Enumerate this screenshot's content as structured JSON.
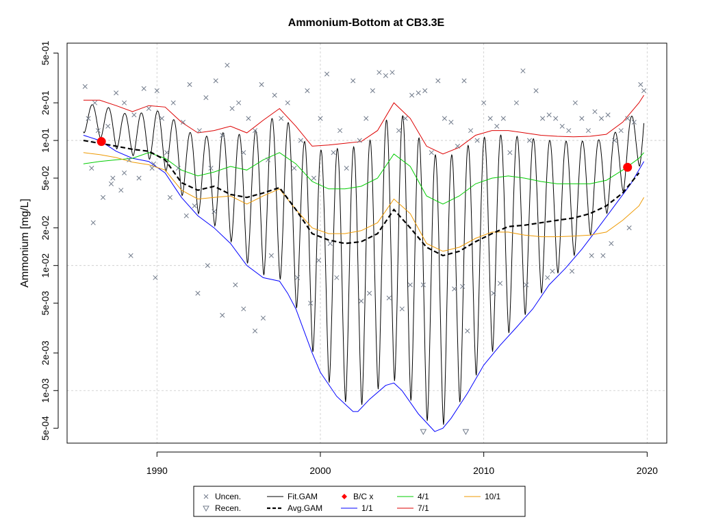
{
  "chart_data": {
    "type": "line",
    "title": "Ammonium-Bottom at CB3.3E",
    "xlabel": "",
    "ylabel": "Ammonium [mg/L]",
    "y_scale": "log",
    "xlim": [
      1984.5,
      2021.2
    ],
    "ylim": [
      0.00038,
      0.6
    ],
    "x_ticks": [
      {
        "value": 1990,
        "label": "1990"
      },
      {
        "value": 2000,
        "label": "2000"
      },
      {
        "value": 2010,
        "label": "2010"
      },
      {
        "value": 2020,
        "label": "2020"
      }
    ],
    "y_ticks": [
      {
        "value": 0.5,
        "label": "5e-01"
      },
      {
        "value": 0.2,
        "label": "2e-01"
      },
      {
        "value": 0.1,
        "label": "1e-01"
      },
      {
        "value": 0.05,
        "label": "5e-02"
      },
      {
        "value": 0.02,
        "label": "2e-02"
      },
      {
        "value": 0.01,
        "label": "1e-02"
      },
      {
        "value": 0.005,
        "label": "5e-03"
      },
      {
        "value": 0.002,
        "label": "2e-03"
      },
      {
        "value": 0.001,
        "label": "1e-03"
      },
      {
        "value": 0.0005,
        "label": "5e-04"
      }
    ],
    "grid": true,
    "legend": {
      "position": "bottom",
      "entries": [
        "Uncen.",
        "Recen.",
        "Fit.GAM",
        "Avg.GAM",
        "B/C x",
        "1/1",
        "4/1",
        "7/1",
        "10/1"
      ]
    },
    "series": [
      {
        "name": "1/1",
        "color": "#0000ff",
        "x": [
          1985.5,
          1986.5,
          1987.5,
          1988.5,
          1989.5,
          1990.5,
          1991.5,
          1992.5,
          1993.5,
          1994.5,
          1995.5,
          1996.5,
          1997.5,
          1998,
          1998.5,
          1999,
          1999.5,
          2000,
          2001,
          2002,
          2002.3,
          2003,
          2004,
          2004.5,
          2005,
          2006,
          2007,
          2007.5,
          2008,
          2009,
          2010,
          2011,
          2012,
          2013,
          2014,
          2015,
          2016,
          2017,
          2018,
          2019,
          2019.8
        ],
        "y": [
          0.11,
          0.1,
          0.082,
          0.072,
          0.068,
          0.055,
          0.035,
          0.025,
          0.02,
          0.015,
          0.01,
          0.008,
          0.0075,
          0.006,
          0.0045,
          0.003,
          0.002,
          0.0014,
          0.0009,
          0.00068,
          0.00068,
          0.00085,
          0.0011,
          0.00115,
          0.001,
          0.00065,
          0.00047,
          0.0005,
          0.0006,
          0.00095,
          0.0016,
          0.0023,
          0.0032,
          0.0045,
          0.007,
          0.0095,
          0.0135,
          0.02,
          0.03,
          0.045,
          0.068
        ]
      },
      {
        "name": "4/1",
        "color": "#00cc00",
        "x": [
          1985.5,
          1986.5,
          1987.5,
          1988.5,
          1989.5,
          1990.5,
          1991.5,
          1992.5,
          1993.5,
          1994.5,
          1995.5,
          1996.5,
          1997.5,
          1998.5,
          1999.5,
          2000.5,
          2001.5,
          2002.5,
          2003.5,
          2004.5,
          2005.5,
          2006.5,
          2007.5,
          2008.5,
          2009.5,
          2010.5,
          2011.5,
          2012.5,
          2013.5,
          2014.5,
          2015.5,
          2016.5,
          2017.5,
          2018.5,
          2019.5,
          2019.8
        ],
        "y": [
          0.065,
          0.068,
          0.07,
          0.072,
          0.08,
          0.072,
          0.058,
          0.052,
          0.056,
          0.062,
          0.058,
          0.07,
          0.08,
          0.065,
          0.047,
          0.041,
          0.041,
          0.043,
          0.05,
          0.078,
          0.062,
          0.036,
          0.031,
          0.036,
          0.045,
          0.05,
          0.052,
          0.05,
          0.047,
          0.045,
          0.045,
          0.045,
          0.048,
          0.058,
          0.072,
          0.08
        ]
      },
      {
        "name": "7/1",
        "color": "#dd0000",
        "x": [
          1985.5,
          1986.5,
          1987.5,
          1988.5,
          1989.5,
          1990.5,
          1991.5,
          1992.5,
          1993.5,
          1994.5,
          1995.5,
          1996.5,
          1997.5,
          1998.5,
          1999.5,
          2000.5,
          2001.5,
          2002.5,
          2003.5,
          2004.5,
          2005.5,
          2006.5,
          2007.5,
          2008.5,
          2009.5,
          2010.5,
          2011.5,
          2012.5,
          2013.5,
          2014.5,
          2015.5,
          2016.5,
          2017.5,
          2018.5,
          2019.5,
          2019.8
        ],
        "y": [
          0.21,
          0.21,
          0.19,
          0.17,
          0.19,
          0.185,
          0.14,
          0.115,
          0.12,
          0.13,
          0.115,
          0.145,
          0.18,
          0.13,
          0.09,
          0.092,
          0.095,
          0.098,
          0.12,
          0.2,
          0.15,
          0.09,
          0.078,
          0.088,
          0.11,
          0.12,
          0.12,
          0.115,
          0.11,
          0.108,
          0.107,
          0.108,
          0.112,
          0.14,
          0.2,
          0.23
        ]
      },
      {
        "name": "10/1",
        "color": "#ee9900",
        "x": [
          1985.5,
          1986.5,
          1987.5,
          1988.5,
          1989.5,
          1990.5,
          1991.5,
          1992.5,
          1993.5,
          1994.5,
          1995.5,
          1996.5,
          1997.5,
          1998.5,
          1999.5,
          2000.5,
          2001.5,
          2002.5,
          2003.5,
          2004.5,
          2005.5,
          2006.5,
          2007.5,
          2008.5,
          2009.5,
          2010.5,
          2011.5,
          2012.5,
          2013.5,
          2014.5,
          2015.5,
          2016.5,
          2017.5,
          2018.5,
          2019.5,
          2019.8
        ],
        "y": [
          0.08,
          0.077,
          0.073,
          0.067,
          0.064,
          0.058,
          0.04,
          0.034,
          0.035,
          0.036,
          0.031,
          0.036,
          0.041,
          0.028,
          0.02,
          0.018,
          0.018,
          0.019,
          0.022,
          0.034,
          0.026,
          0.015,
          0.013,
          0.014,
          0.0165,
          0.0185,
          0.0185,
          0.0175,
          0.017,
          0.017,
          0.0172,
          0.0175,
          0.0185,
          0.023,
          0.03,
          0.035
        ]
      },
      {
        "name": "Avg.GAM",
        "color": "#000000",
        "dashed": true,
        "x": [
          1985.5,
          1986.5,
          1987.5,
          1988.5,
          1989.5,
          1990.5,
          1991.5,
          1992.5,
          1993.5,
          1994.5,
          1995.5,
          1996.5,
          1997.5,
          1998.5,
          1999.5,
          2000.5,
          2001.5,
          2002.5,
          2003.5,
          2004.5,
          2005.5,
          2006.5,
          2007.5,
          2008.5,
          2009.5,
          2010.5,
          2011.5,
          2012.5,
          2013.5,
          2014.5,
          2015.5,
          2016.5,
          2017.5,
          2018.5,
          2019.5
        ],
        "y": [
          0.1,
          0.095,
          0.09,
          0.085,
          0.082,
          0.07,
          0.046,
          0.04,
          0.043,
          0.037,
          0.035,
          0.038,
          0.042,
          0.028,
          0.018,
          0.016,
          0.015,
          0.0155,
          0.018,
          0.028,
          0.02,
          0.014,
          0.012,
          0.013,
          0.0155,
          0.018,
          0.0205,
          0.021,
          0.022,
          0.023,
          0.024,
          0.026,
          0.03,
          0.038,
          0.055
        ]
      }
    ],
    "fit_gam": {
      "name": "Fit.GAM",
      "color": "#000000",
      "x_start": 1985.5,
      "x_end": 2019.8,
      "seasonal_peak_series": "7/1",
      "seasonal_trough_series": "1/1"
    },
    "bc_x": {
      "name": "B/C x",
      "color": "#ff0000",
      "points": [
        {
          "x": 1986.6,
          "y": 0.098
        },
        {
          "x": 2018.8,
          "y": 0.061
        }
      ]
    },
    "uncensored": {
      "name": "Uncen.",
      "color": "#707a8a",
      "x": [
        1985.6,
        1985.8,
        1986.0,
        1986.2,
        1986.4,
        1986.7,
        1987.0,
        1987.3,
        1987.5,
        1987.8,
        1988.0,
        1988.3,
        1988.6,
        1988.9,
        1989.2,
        1989.5,
        1989.7,
        1990.0,
        1990.3,
        1990.6,
        1991.0,
        1991.3,
        1991.6,
        1992.0,
        1992.3,
        1992.6,
        1993.0,
        1993.3,
        1993.6,
        1994.0,
        1994.3,
        1994.6,
        1995.0,
        1995.3,
        1995.6,
        1996.0,
        1996.4,
        1996.8,
        1997.2,
        1997.6,
        1998.0,
        1998.4,
        1998.8,
        1999.2,
        1999.6,
        2000.0,
        2000.4,
        2000.8,
        2001.2,
        2001.6,
        2002.0,
        2002.4,
        2002.8,
        2003.2,
        2003.6,
        2004.0,
        2004.4,
        2004.8,
        2005.2,
        2005.6,
        2006.0,
        2006.4,
        2006.8,
        2007.2,
        2007.6,
        2008.0,
        2008.4,
        2008.8,
        2009.2,
        2009.6,
        2010.0,
        2010.4,
        2010.8,
        2011.2,
        2011.6,
        2012.0,
        2012.4,
        2012.8,
        2013.2,
        2013.6,
        2014.0,
        2014.4,
        2014.8,
        2015.2,
        2015.6,
        2016.0,
        2016.4,
        2016.8,
        2017.2,
        2017.6,
        2018.0,
        2018.4,
        2018.8,
        2019.2,
        2019.6,
        2019.8,
        1986.1,
        1987.2,
        1988.4,
        1989.9,
        1991.8,
        1993.1,
        1994.8,
        1995.3,
        1997.0,
        1998.6,
        1999.9,
        2000.6,
        2001.0,
        2003.0,
        2004.2,
        2005.0,
        2006.3,
        2008.2,
        2009.0,
        2010.6,
        2012.6,
        2013.9,
        2015.4,
        2016.6,
        2017.8,
        2018.9,
        1989.8,
        1992.5,
        1994.0,
        1996.5,
        1999.4,
        2002.5,
        2005.5,
        2008.7,
        2011.0,
        2014.2,
        2017.3,
        1988.0,
        1990.8,
        1993.5,
        1996.0
      ],
      "y": [
        0.27,
        0.15,
        0.06,
        0.2,
        0.12,
        0.035,
        0.13,
        0.05,
        0.24,
        0.04,
        0.2,
        0.07,
        0.16,
        0.05,
        0.26,
        0.18,
        0.06,
        0.25,
        0.15,
        0.08,
        0.2,
        0.06,
        0.14,
        0.28,
        0.03,
        0.12,
        0.22,
        0.06,
        0.3,
        0.11,
        0.4,
        0.18,
        0.2,
        0.08,
        0.15,
        0.12,
        0.28,
        0.07,
        0.23,
        0.15,
        0.2,
        0.06,
        0.1,
        0.25,
        0.05,
        0.15,
        0.34,
        0.08,
        0.12,
        0.06,
        0.3,
        0.1,
        0.15,
        0.25,
        0.35,
        0.33,
        0.35,
        0.12,
        0.15,
        0.23,
        0.24,
        0.25,
        0.08,
        0.3,
        0.15,
        0.14,
        0.09,
        0.3,
        0.12,
        0.1,
        0.2,
        0.15,
        0.13,
        0.15,
        0.08,
        0.2,
        0.36,
        0.1,
        0.25,
        0.15,
        0.16,
        0.15,
        0.13,
        0.12,
        0.2,
        0.15,
        0.12,
        0.17,
        0.15,
        0.16,
        0.1,
        0.12,
        0.15,
        0.14,
        0.28,
        0.25,
        0.022,
        0.045,
        0.012,
        0.008,
        0.025,
        0.01,
        0.007,
        0.0045,
        0.012,
        0.008,
        0.011,
        0.015,
        0.008,
        0.006,
        0.0055,
        0.0045,
        0.007,
        0.0065,
        0.003,
        0.006,
        0.007,
        0.008,
        0.009,
        0.012,
        0.015,
        0.02,
        0.065,
        0.006,
        0.004,
        0.0038,
        0.005,
        0.0052,
        0.007,
        0.0068,
        0.0072,
        0.009,
        0.012,
        0.055,
        0.035,
        0.027,
        0.003
      ]
    },
    "recensored": {
      "name": "Recen.",
      "color": "#707a8a",
      "x": [
        2006.3,
        2008.9
      ],
      "y": [
        0.00047,
        0.00047
      ]
    }
  }
}
